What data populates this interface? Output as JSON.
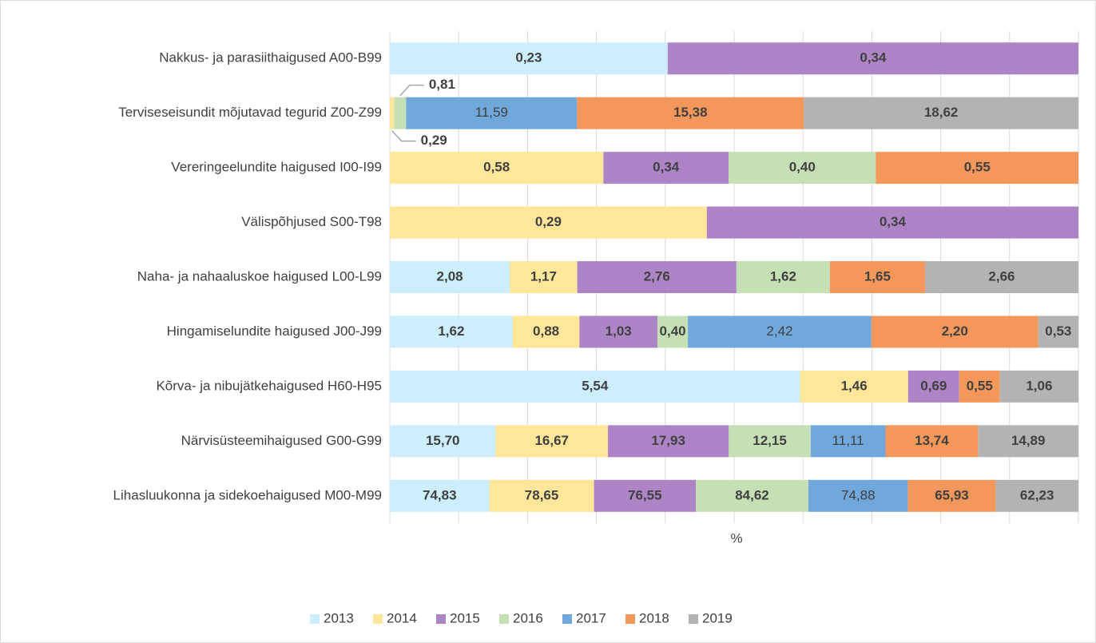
{
  "chart_data": {
    "type": "bar",
    "orientation": "horizontal",
    "stacking": "percent",
    "x_label": "%",
    "categories": [
      "Nakkus- ja parasiithaigused A00-B99",
      "Terviseseisundit mõjutavad tegurid Z00-Z99",
      "Vereringeelundite haigused I00-I99",
      "Välispõhjused S00-T98",
      "Naha- ja nahaaluskoe haigused L00-L99",
      "Hingamiselundite haigused J00-J99",
      "Kõrva- ja nibujätkehaigused H60-H95",
      "Närvisüsteemihaigused G00-G99",
      "Lihasluukonna  ja sidekoehaigused M00-M99"
    ],
    "series": [
      {
        "name": "2013",
        "color": "#cdeefd",
        "values": [
          0.23,
          null,
          null,
          null,
          2.08,
          1.62,
          5.54,
          15.7,
          74.83
        ],
        "value_labels": [
          "0,23",
          null,
          null,
          null,
          "2,08",
          "1,62",
          "5,54",
          "15,70",
          "74,83"
        ]
      },
      {
        "name": "2014",
        "color": "#ffe699",
        "values": [
          null,
          0.29,
          0.58,
          0.29,
          1.17,
          0.88,
          1.46,
          16.67,
          78.65
        ],
        "value_labels": [
          null,
          "0,29",
          "0,58",
          "0,29",
          "1,17",
          "0,88",
          "1,46",
          "16,67",
          "78,65"
        ]
      },
      {
        "name": "2015",
        "color": "#ad84c6",
        "values": [
          0.34,
          null,
          0.34,
          0.34,
          2.76,
          1.03,
          0.69,
          17.93,
          76.55
        ],
        "value_labels": [
          "0,34",
          null,
          "0,34",
          "0,34",
          "2,76",
          "1,03",
          "0,69",
          "17,93",
          "76,55"
        ]
      },
      {
        "name": "2016",
        "color": "#c5e0b4",
        "values": [
          null,
          0.81,
          0.4,
          null,
          1.62,
          0.4,
          null,
          12.15,
          84.62
        ],
        "value_labels": [
          null,
          "0,81",
          "0,40",
          null,
          "1,62",
          "0,40",
          null,
          "12,15",
          "84,62"
        ]
      },
      {
        "name": "2017",
        "color": "#70a8dc",
        "values": [
          null,
          11.59,
          null,
          null,
          null,
          2.42,
          null,
          11.11,
          74.88
        ],
        "value_labels": [
          null,
          "11,59",
          null,
          null,
          null,
          "2,42",
          null,
          "11,11",
          "74,88"
        ],
        "label_weight": "normal"
      },
      {
        "name": "2018",
        "color": "#f4975a",
        "values": [
          null,
          15.38,
          0.55,
          null,
          1.65,
          2.2,
          0.55,
          13.74,
          65.93
        ],
        "value_labels": [
          null,
          "15,38",
          "0,55",
          null,
          "1,65",
          "2,20",
          "0,55",
          "13,74",
          "65,93"
        ]
      },
      {
        "name": "2019",
        "color": "#b3b3b3",
        "values": [
          null,
          18.62,
          null,
          null,
          2.66,
          0.53,
          1.06,
          14.89,
          62.23
        ],
        "value_labels": [
          null,
          "18,62",
          null,
          null,
          "2,66",
          "0,53",
          "1,06",
          "14,89",
          "62,23"
        ]
      }
    ],
    "xlim": [
      0,
      100
    ],
    "xticks": [
      0,
      10,
      20,
      30,
      40,
      50,
      60,
      70,
      80,
      90,
      100
    ],
    "grid": true,
    "legend": "bottom"
  }
}
